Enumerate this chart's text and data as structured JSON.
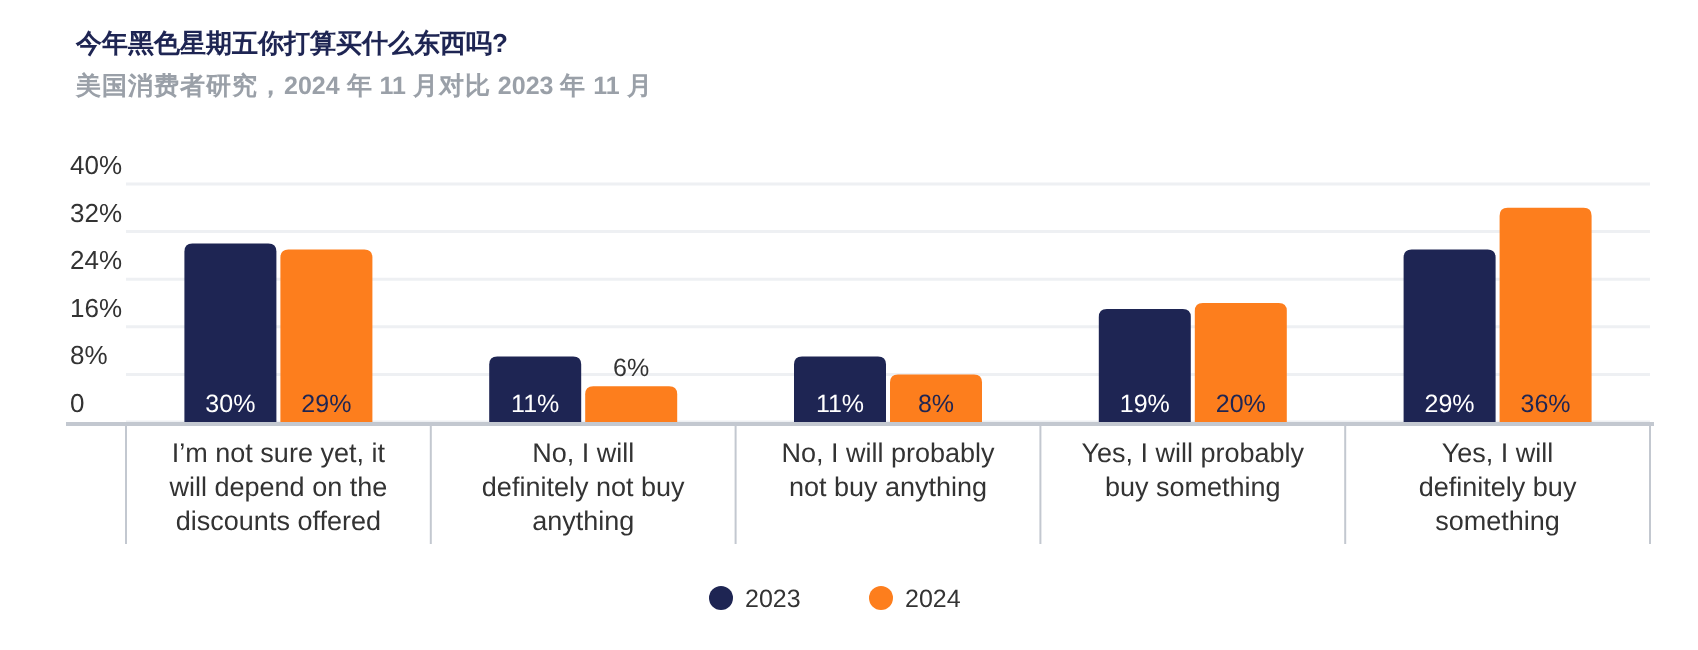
{
  "chart_data": {
    "type": "bar",
    "title": "今年黑色星期五你打算买什么东西吗?",
    "subtitle": "美国消费者研究，2024 年 11 月对比 2023 年 11 月",
    "categories": [
      "I’m not sure yet, it will depend on the discounts offered",
      "No, I will definitely not buy anything",
      "No, I will probably not buy anything",
      "Yes, I will probably buy something",
      "Yes, I will definitely buy something"
    ],
    "series": [
      {
        "name": "2023",
        "color": "#1e2553",
        "values": [
          30,
          11,
          11,
          19,
          29
        ],
        "value_labels": [
          "30%",
          "11%",
          "11%",
          "19%",
          "29%"
        ]
      },
      {
        "name": "2024",
        "color": "#fd7e1d",
        "values": [
          29,
          6,
          8,
          20,
          36
        ],
        "value_labels": [
          "29%",
          "6%",
          "8%",
          "20%",
          "36%"
        ]
      }
    ],
    "ylim": [
      0,
      40
    ],
    "yticks": [
      0,
      {
        "value": 8,
        "label": "8%"
      },
      {
        "value": 16,
        "label": "16%"
      },
      {
        "value": 24,
        "label": "24%"
      },
      {
        "value": 32,
        "label": "32%"
      },
      {
        "value": 40,
        "label": "40%"
      }
    ],
    "grid": "y",
    "legend": "bottom"
  }
}
